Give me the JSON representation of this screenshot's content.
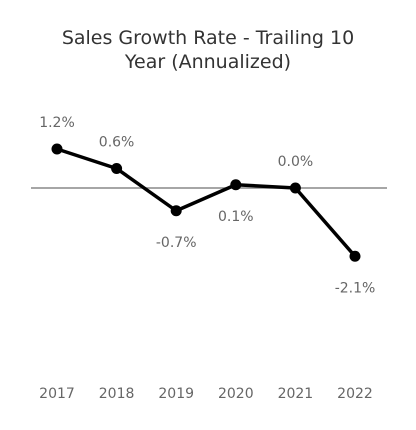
{
  "chart_data": {
    "type": "line",
    "title_lines": [
      "Sales Growth Rate - Trailing 10",
      "Year (Annualized)"
    ],
    "categories": [
      "2017",
      "2018",
      "2019",
      "2020",
      "2021",
      "2022"
    ],
    "series": [
      {
        "values": [
          1.2,
          0.6,
          -0.7,
          0.1,
          0.0,
          -2.1
        ]
      }
    ],
    "data_labels": [
      "1.2%",
      "0.6%",
      "-0.7%",
      "0.1%",
      "0.0%",
      "-2.1%"
    ],
    "label_positions": [
      "above",
      "above",
      "below",
      "below",
      "above",
      "below"
    ],
    "xlabel": "",
    "ylabel": "",
    "ylim": [
      -2.5,
      1.5
    ],
    "grid": false,
    "legend": "none",
    "colors": {
      "line": "#000000",
      "zero_line": "#888888",
      "text": "#666666",
      "title": "#333333"
    }
  }
}
